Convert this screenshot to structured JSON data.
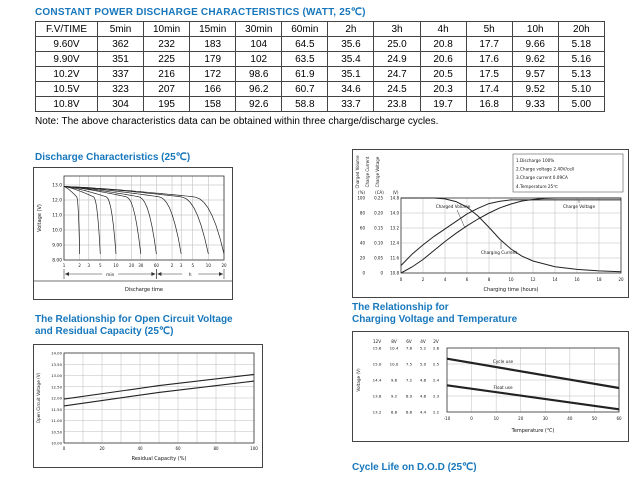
{
  "title": "CONSTANT POWER DISCHARGE CHARACTERISTICS (WATT, 25℃)",
  "note": "Note: The above characteristics data can be obtained within three charge/discharge cycles.",
  "colors": {
    "accent": "#1777BD",
    "grid": "#b5b5b5",
    "curve": "#222222"
  },
  "table": {
    "headers": [
      "F.V/TIME",
      "5min",
      "10min",
      "15min",
      "30min",
      "60min",
      "2h",
      "3h",
      "4h",
      "5h",
      "10h",
      "20h"
    ],
    "rows": [
      [
        "9.60V",
        "362",
        "232",
        "183",
        "104",
        "64.5",
        "35.6",
        "25.0",
        "20.8",
        "17.7",
        "9.66",
        "5.18"
      ],
      [
        "9.90V",
        "351",
        "225",
        "179",
        "102",
        "63.5",
        "35.4",
        "24.9",
        "20.6",
        "17.6",
        "9.62",
        "5.16"
      ],
      [
        "10.2V",
        "337",
        "216",
        "172",
        "98.6",
        "61.9",
        "35.1",
        "24.7",
        "20.5",
        "17.5",
        "9.57",
        "5.13"
      ],
      [
        "10.5V",
        "323",
        "207",
        "166",
        "96.2",
        "60.7",
        "34.6",
        "24.5",
        "20.3",
        "17.4",
        "9.52",
        "5.10"
      ],
      [
        "10.8V",
        "304",
        "195",
        "158",
        "92.6",
        "58.8",
        "33.7",
        "23.8",
        "19.7",
        "16.8",
        "9.33",
        "5.00"
      ]
    ]
  },
  "sections": {
    "discharge_title": "Discharge Characteristics (25℃)",
    "ocv_title_line1": "The Relationship for Open Circuit Voltage",
    "ocv_title_line2": "and Residual Capacity (25℃)",
    "charging_title_line1": "The Relationship for",
    "charging_title_line2": "Charging Voltage and Temperature",
    "cycle_life_title": "Cycle Life on D.O.D (25℃)"
  },
  "chart_data": [
    {
      "id": "discharge",
      "type": "line",
      "title": "Discharge Characteristics (25℃)",
      "ylabel": "Voltage (V)",
      "xlabel": "Discharge time",
      "x_scale": "log-minutes",
      "x_unit_min": "min",
      "x_unit_h": "h",
      "x_ticks": [
        {
          "t": 1,
          "label": "1"
        },
        {
          "t": 2,
          "label": "2"
        },
        {
          "t": 3,
          "label": "3"
        },
        {
          "t": 5,
          "label": "5"
        },
        {
          "t": 10,
          "label": "10"
        },
        {
          "t": 20,
          "label": "20"
        },
        {
          "t": 30,
          "label": "30"
        },
        {
          "t": 60,
          "label": "60"
        },
        {
          "t": 120,
          "label": "2"
        },
        {
          "t": 180,
          "label": "3"
        },
        {
          "t": 300,
          "label": "5"
        },
        {
          "t": 600,
          "label": "10"
        },
        {
          "t": 1200,
          "label": "20"
        }
      ],
      "y_ticks": [
        "13.0",
        "12.0",
        "11.0",
        "10.0",
        "9.00",
        "8.00"
      ],
      "ylim": [
        8.0,
        13.6
      ],
      "start_voltage": 12.9,
      "end_voltage": 8.4,
      "discharge_end_times_min": [
        2,
        5,
        10,
        30,
        60,
        180,
        600,
        1200
      ]
    },
    {
      "id": "charging",
      "type": "line",
      "axis_labels": [
        "Charged Volume",
        "Charge Current",
        "Charge Voltage"
      ],
      "axis_units": [
        "(%)",
        "(CA)",
        "(V)"
      ],
      "volume_ticks": [
        "100",
        "80",
        "60",
        "40",
        "20",
        "0"
      ],
      "current_ticks": [
        "0.25",
        "0.20",
        "0.15",
        "0.10",
        "0.05",
        "0"
      ],
      "voltage_ticks": [
        "14.8",
        "14.0",
        "13.2",
        "12.4",
        "11.6",
        "10.8"
      ],
      "x_ticks": [
        "0",
        "2",
        "4",
        "6",
        "8",
        "10",
        "12",
        "14",
        "16",
        "18",
        "20"
      ],
      "xlabel": "Charging time (hours)",
      "legend": [
        "1.Discharge 100%",
        "2.Charge voltage 2.40V/cell",
        "3.Charge current 0.09CA",
        "4.Temperature 25℃"
      ],
      "curve_labels": {
        "volume": "Charged Volume",
        "voltage": "Charge Voltage",
        "current": "Charging Current"
      },
      "series": {
        "volume": [
          [
            0,
            0
          ],
          [
            1,
            8
          ],
          [
            2,
            18
          ],
          [
            3,
            30
          ],
          [
            4,
            42
          ],
          [
            5,
            53
          ],
          [
            6,
            63
          ],
          [
            7,
            72
          ],
          [
            8,
            80
          ],
          [
            9,
            87
          ],
          [
            10,
            92
          ],
          [
            11,
            96
          ],
          [
            12,
            98
          ],
          [
            13,
            99.5
          ],
          [
            14,
            100
          ],
          [
            16,
            100
          ],
          [
            18,
            100
          ],
          [
            20,
            100
          ]
        ],
        "voltage": [
          [
            0,
            11.2
          ],
          [
            1,
            11.8
          ],
          [
            2,
            12.3
          ],
          [
            3,
            12.75
          ],
          [
            4,
            13.15
          ],
          [
            5,
            13.55
          ],
          [
            6,
            13.95
          ],
          [
            7,
            14.25
          ],
          [
            8,
            14.5
          ],
          [
            9,
            14.63
          ],
          [
            10,
            14.7
          ],
          [
            12,
            14.7
          ],
          [
            16,
            14.7
          ],
          [
            20,
            14.7
          ]
        ],
        "current": [
          [
            0,
            0.25
          ],
          [
            3,
            0.25
          ],
          [
            4,
            0.247
          ],
          [
            5,
            0.238
          ],
          [
            6,
            0.22
          ],
          [
            7,
            0.19
          ],
          [
            8,
            0.152
          ],
          [
            9,
            0.112
          ],
          [
            10,
            0.08
          ],
          [
            11,
            0.056
          ],
          [
            12,
            0.04
          ],
          [
            14,
            0.021
          ],
          [
            16,
            0.012
          ],
          [
            18,
            0.007
          ],
          [
            20,
            0.004
          ]
        ]
      }
    },
    {
      "id": "ocv",
      "type": "line",
      "ylabel": "Open Circuit Voltage (V)",
      "xlabel": "Residual Capacity (%)",
      "y_ticks": [
        "14.00",
        "13.50",
        "13.00",
        "12.50",
        "12.00",
        "11.50",
        "11.00",
        "10.50",
        "10.00"
      ],
      "ylim": [
        10.0,
        14.0
      ],
      "x_ticks": [
        0,
        20,
        40,
        60,
        80,
        100
      ],
      "x_minor_step": 10,
      "xlim": [
        0,
        100
      ],
      "series": [
        {
          "name": "line-upper",
          "points": [
            [
              0,
              11.95
            ],
            [
              50,
              12.55
            ],
            [
              100,
              13.05
            ]
          ]
        },
        {
          "name": "line-lower",
          "points": [
            [
              0,
              11.65
            ],
            [
              50,
              12.25
            ],
            [
              100,
              12.75
            ]
          ]
        }
      ]
    },
    {
      "id": "temp",
      "type": "line",
      "ylabel": "Voltage (V)",
      "xlabel": "Temperature (℃)",
      "scale_headers": [
        "12V",
        "8V",
        "6V",
        "4V",
        "2V"
      ],
      "scale_rows": [
        [
          "15.6",
          "10.4",
          "7.8",
          "5.2",
          "2.6"
        ],
        [
          "15.0",
          "10.0",
          "7.5",
          "5.0",
          "2.5"
        ],
        [
          "14.4",
          "9.6",
          "7.2",
          "4.8",
          "2.4"
        ],
        [
          "13.8",
          "9.2",
          "6.9",
          "4.6",
          "2.3"
        ],
        [
          "13.2",
          "8.8",
          "6.6",
          "4.4",
          "2.2"
        ]
      ],
      "ylim_12v": [
        13.2,
        15.6
      ],
      "x_ticks": [
        -10,
        0,
        10,
        20,
        30,
        40,
        50,
        60
      ],
      "xlim": [
        -10,
        60
      ],
      "series": [
        {
          "name": "Cycle use",
          "points": [
            [
              -10,
              15.2
            ],
            [
              60,
              14.1
            ]
          ]
        },
        {
          "name": "Float use",
          "points": [
            [
              -10,
              14.2
            ],
            [
              60,
              13.3
            ]
          ]
        }
      ]
    }
  ]
}
